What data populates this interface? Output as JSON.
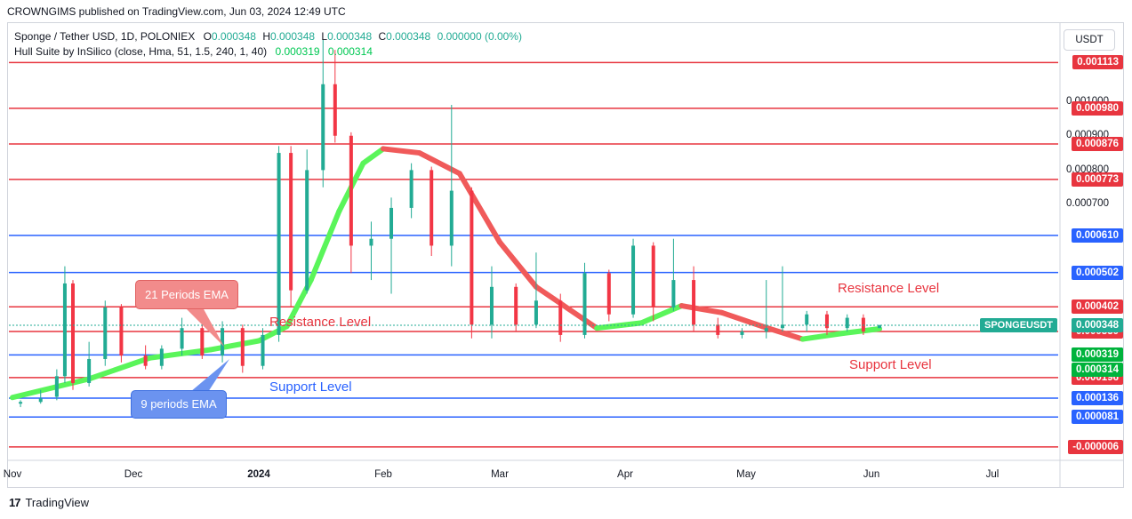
{
  "header": {
    "publish_line": "CROWNGIMS published on TradingView.com, Jun 03, 2024 12:49 UTC"
  },
  "legend": {
    "symbol": "Sponge / Tether USD, 1D, POLONIEX",
    "o_label": "O",
    "o_val": "0.000348",
    "h_label": "H",
    "h_val": "0.000348",
    "l_label": "L",
    "l_val": "0.000348",
    "c_label": "C",
    "c_val": "0.000348",
    "chg": "0.000000 (0.00%)",
    "indicator": "Hull Suite by InSilico (close, Hma, 51, 1.5, 240, 1, 40)",
    "ind_val1": "0.000319",
    "ind_val2": "0.000314"
  },
  "currency_button": "USDT",
  "annotations": {
    "resistance_left": "Resistance Level",
    "support_left": "Support Level",
    "resistance_right": "Resistance Level",
    "support_right": "Support Level",
    "ema21": "21 Periods EMA",
    "ema9": "9 periods EMA"
  },
  "symbol_tag": "SPONGEUSDT",
  "footer": {
    "brand": "TradingView",
    "logo": "17"
  },
  "colors": {
    "red_line": "#e8353f",
    "blue_line": "#2962ff",
    "up": "#22ab94",
    "down": "#f23645",
    "hull_green": "#5af55a",
    "hull_red": "#f05a5a"
  },
  "chart_data": {
    "type": "candlestick",
    "title": "Sponge / Tether USD, 1D, POLONIEX",
    "ylim": [
      -2e-05,
      0.00116
    ],
    "y_ticks": [
      "0.001000",
      "0.000900",
      "0.000800",
      "0.000700"
    ],
    "x_ticks": [
      "Nov",
      "Dec",
      "2024",
      "Feb",
      "Mar",
      "Apr",
      "May",
      "Jun",
      "Jul"
    ],
    "horizontal_levels": [
      {
        "value": 0.001113,
        "label": "0.001113",
        "color": "red"
      },
      {
        "value": 0.00098,
        "label": "0.000980",
        "color": "red"
      },
      {
        "value": 0.000876,
        "label": "0.000876",
        "color": "red"
      },
      {
        "value": 0.000773,
        "label": "0.000773",
        "color": "red"
      },
      {
        "value": 0.00061,
        "label": "0.000610",
        "color": "blue"
      },
      {
        "value": 0.000502,
        "label": "0.000502",
        "color": "blue"
      },
      {
        "value": 0.000402,
        "label": "0.000402",
        "color": "red"
      },
      {
        "value": 0.00033,
        "label": "0.000330",
        "color": "red"
      },
      {
        "value": 0.000262,
        "label": "0.000262",
        "color": "blue"
      },
      {
        "value": 0.000196,
        "label": "0.000196",
        "color": "red"
      },
      {
        "value": 0.000136,
        "label": "0.000136",
        "color": "blue"
      },
      {
        "value": 8.1e-05,
        "label": "0.000081",
        "color": "blue"
      },
      {
        "value": -6e-06,
        "label": "-0.000006",
        "color": "red"
      }
    ],
    "price_tags": [
      {
        "value": 0.000348,
        "label": "0.000348",
        "color": "teal"
      },
      {
        "value": 0.000319,
        "label": "0.000319",
        "color": "green"
      },
      {
        "value": 0.000314,
        "label": "0.000314",
        "color": "green"
      }
    ],
    "hull_curve": [
      {
        "date": "2023-11-01",
        "value": 0.000138
      },
      {
        "date": "2023-11-20",
        "value": 0.000192
      },
      {
        "date": "2023-12-05",
        "value": 0.000253
      },
      {
        "date": "2023-12-20",
        "value": 0.000277
      },
      {
        "date": "2024-01-01",
        "value": 0.000303
      },
      {
        "date": "2024-01-08",
        "value": 0.000345
      },
      {
        "date": "2024-01-14",
        "value": 0.00048
      },
      {
        "date": "2024-01-21",
        "value": 0.00068
      },
      {
        "date": "2024-01-27",
        "value": 0.00082
      },
      {
        "date": "2024-02-01",
        "value": 0.000862
      },
      {
        "date": "2024-02-10",
        "value": 0.00085
      },
      {
        "date": "2024-02-20",
        "value": 0.00079
      },
      {
        "date": "2024-03-01",
        "value": 0.00059
      },
      {
        "date": "2024-03-10",
        "value": 0.00046
      },
      {
        "date": "2024-03-25",
        "value": 0.00034
      },
      {
        "date": "2024-04-05",
        "value": 0.000355
      },
      {
        "date": "2024-04-15",
        "value": 0.000405
      },
      {
        "date": "2024-04-25",
        "value": 0.000385
      },
      {
        "date": "2024-05-05",
        "value": 0.000345
      },
      {
        "date": "2024-05-15",
        "value": 0.000308
      },
      {
        "date": "2024-05-25",
        "value": 0.000325
      },
      {
        "date": "2024-06-03",
        "value": 0.000338
      }
    ],
    "candles": [
      {
        "date": "2023-11-03",
        "o": 0.00012,
        "h": 0.00013,
        "l": 0.00011,
        "c": 0.000125
      },
      {
        "date": "2023-11-08",
        "o": 0.000125,
        "h": 0.00016,
        "l": 0.00012,
        "c": 0.000135
      },
      {
        "date": "2023-11-12",
        "o": 0.00014,
        "h": 0.00022,
        "l": 0.00013,
        "c": 0.0002
      },
      {
        "date": "2023-11-14",
        "o": 0.0002,
        "h": 0.00052,
        "l": 0.00018,
        "c": 0.00047
      },
      {
        "date": "2023-11-16",
        "o": 0.00047,
        "h": 0.00048,
        "l": 0.00016,
        "c": 0.00018
      },
      {
        "date": "2023-11-20",
        "o": 0.00018,
        "h": 0.0003,
        "l": 0.00017,
        "c": 0.00025
      },
      {
        "date": "2023-11-24",
        "o": 0.00025,
        "h": 0.00042,
        "l": 0.00023,
        "c": 0.0004
      },
      {
        "date": "2023-11-28",
        "o": 0.0004,
        "h": 0.00041,
        "l": 0.00024,
        "c": 0.00026
      },
      {
        "date": "2023-12-04",
        "o": 0.00026,
        "h": 0.00029,
        "l": 0.00022,
        "c": 0.00023
      },
      {
        "date": "2023-12-08",
        "o": 0.00023,
        "h": 0.00029,
        "l": 0.00022,
        "c": 0.00028
      },
      {
        "date": "2023-12-13",
        "o": 0.00028,
        "h": 0.00037,
        "l": 0.00026,
        "c": 0.00034
      },
      {
        "date": "2023-12-18",
        "o": 0.00034,
        "h": 0.0004,
        "l": 0.00025,
        "c": 0.00026
      },
      {
        "date": "2023-12-23",
        "o": 0.00026,
        "h": 0.00036,
        "l": 0.00024,
        "c": 0.00034
      },
      {
        "date": "2023-12-28",
        "o": 0.00034,
        "h": 0.00035,
        "l": 0.00021,
        "c": 0.00023
      },
      {
        "date": "2024-01-02",
        "o": 0.00023,
        "h": 0.00034,
        "l": 0.00022,
        "c": 0.00032
      },
      {
        "date": "2024-01-06",
        "o": 0.00032,
        "h": 0.00087,
        "l": 0.0003,
        "c": 0.00085
      },
      {
        "date": "2024-01-09",
        "o": 0.00085,
        "h": 0.00087,
        "l": 0.0004,
        "c": 0.00045
      },
      {
        "date": "2024-01-13",
        "o": 0.00045,
        "h": 0.00086,
        "l": 0.00044,
        "c": 0.0008
      },
      {
        "date": "2024-01-17",
        "o": 0.0008,
        "h": 0.00118,
        "l": 0.00075,
        "c": 0.00105
      },
      {
        "date": "2024-01-20",
        "o": 0.00105,
        "h": 0.00115,
        "l": 0.00088,
        "c": 0.0009
      },
      {
        "date": "2024-01-24",
        "o": 0.0009,
        "h": 0.00091,
        "l": 0.0005,
        "c": 0.00058
      },
      {
        "date": "2024-01-29",
        "o": 0.00058,
        "h": 0.00065,
        "l": 0.00048,
        "c": 0.0006
      },
      {
        "date": "2024-02-03",
        "o": 0.0006,
        "h": 0.00072,
        "l": 0.00044,
        "c": 0.00069
      },
      {
        "date": "2024-02-08",
        "o": 0.00069,
        "h": 0.00082,
        "l": 0.00066,
        "c": 0.0008
      },
      {
        "date": "2024-02-13",
        "o": 0.0008,
        "h": 0.00081,
        "l": 0.00055,
        "c": 0.00058
      },
      {
        "date": "2024-02-18",
        "o": 0.00058,
        "h": 0.00099,
        "l": 0.00052,
        "c": 0.00074
      },
      {
        "date": "2024-02-23",
        "o": 0.00074,
        "h": 0.00075,
        "l": 0.00031,
        "c": 0.00035
      },
      {
        "date": "2024-02-28",
        "o": 0.00035,
        "h": 0.00052,
        "l": 0.00031,
        "c": 0.00046
      },
      {
        "date": "2024-03-05",
        "o": 0.00046,
        "h": 0.00047,
        "l": 0.00033,
        "c": 0.00035
      },
      {
        "date": "2024-03-10",
        "o": 0.00035,
        "h": 0.00056,
        "l": 0.00034,
        "c": 0.00042
      },
      {
        "date": "2024-03-16",
        "o": 0.00042,
        "h": 0.00044,
        "l": 0.0003,
        "c": 0.00032
      },
      {
        "date": "2024-03-22",
        "o": 0.00032,
        "h": 0.00053,
        "l": 0.00031,
        "c": 0.0005
      },
      {
        "date": "2024-03-28",
        "o": 0.0005,
        "h": 0.00051,
        "l": 0.00036,
        "c": 0.00038
      },
      {
        "date": "2024-04-03",
        "o": 0.00038,
        "h": 0.0006,
        "l": 0.00037,
        "c": 0.00058
      },
      {
        "date": "2024-04-08",
        "o": 0.00058,
        "h": 0.00059,
        "l": 0.00036,
        "c": 0.0004
      },
      {
        "date": "2024-04-13",
        "o": 0.0004,
        "h": 0.0006,
        "l": 0.00039,
        "c": 0.00048
      },
      {
        "date": "2024-04-18",
        "o": 0.00048,
        "h": 0.00052,
        "l": 0.00033,
        "c": 0.00035
      },
      {
        "date": "2024-04-24",
        "o": 0.00035,
        "h": 0.00037,
        "l": 0.00031,
        "c": 0.00032
      },
      {
        "date": "2024-04-30",
        "o": 0.00032,
        "h": 0.00034,
        "l": 0.00031,
        "c": 0.00033
      },
      {
        "date": "2024-05-06",
        "o": 0.00033,
        "h": 0.00048,
        "l": 0.00031,
        "c": 0.00034
      },
      {
        "date": "2024-05-10",
        "o": 0.00034,
        "h": 0.00052,
        "l": 0.00033,
        "c": 0.00035
      },
      {
        "date": "2024-05-16",
        "o": 0.00035,
        "h": 0.00039,
        "l": 0.00033,
        "c": 0.00038
      },
      {
        "date": "2024-05-21",
        "o": 0.00038,
        "h": 0.00039,
        "l": 0.00032,
        "c": 0.00034
      },
      {
        "date": "2024-05-26",
        "o": 0.00034,
        "h": 0.00038,
        "l": 0.00033,
        "c": 0.00037
      },
      {
        "date": "2024-05-30",
        "o": 0.00037,
        "h": 0.00038,
        "l": 0.00032,
        "c": 0.00033
      },
      {
        "date": "2024-06-03",
        "o": 0.00034,
        "h": 0.00035,
        "l": 0.00034,
        "c": 0.000348
      }
    ]
  }
}
